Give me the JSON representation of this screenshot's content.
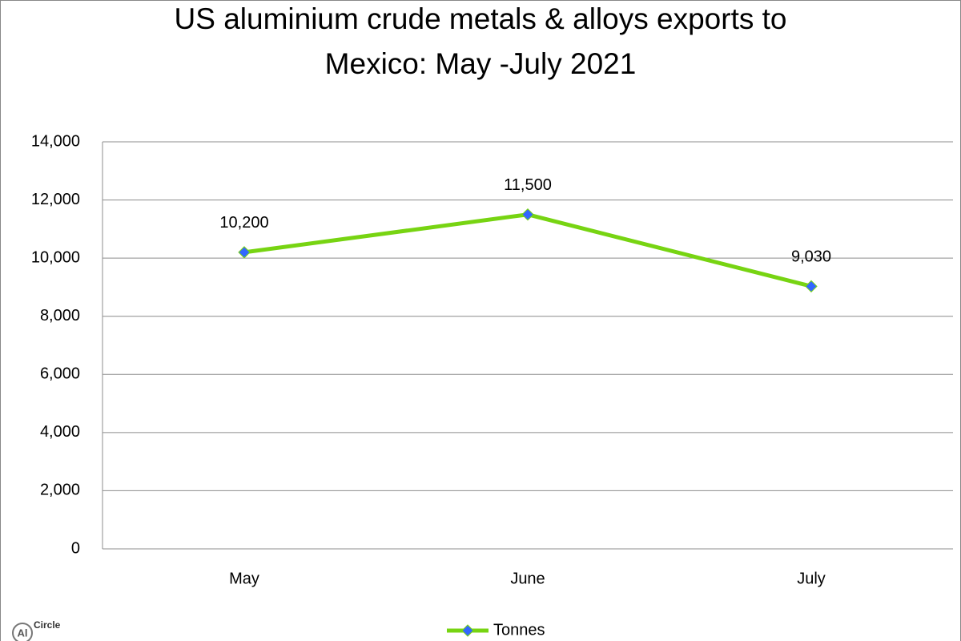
{
  "chart_data": {
    "type": "line",
    "title": [
      "US aluminium crude metals & alloys exports to",
      "Mexico: May -July 2021"
    ],
    "categories": [
      "May",
      "June",
      "July"
    ],
    "series": [
      {
        "name": "Tonnes",
        "color": "#77d412",
        "marker_color": "#3366ff",
        "values": [
          10200,
          11500,
          9030
        ],
        "value_labels": [
          "10,200",
          "11,500",
          "9,030"
        ]
      }
    ],
    "ylim": [
      0,
      14000
    ],
    "yticks": [
      0,
      {
        "value": 2000,
        "label": "2,000"
      },
      {
        "value": 4000,
        "label": "4,000"
      },
      {
        "value": 6000,
        "label": "6,000"
      },
      {
        "value": 8000,
        "label": "8,000"
      },
      {
        "value": 10000,
        "label": "10,000"
      },
      {
        "value": 12000,
        "label": "12,000"
      },
      {
        "value": 14000,
        "label": "14,000"
      }
    ],
    "grid": true,
    "legend": "bottom",
    "logo": [
      "Al",
      "Circle"
    ]
  }
}
